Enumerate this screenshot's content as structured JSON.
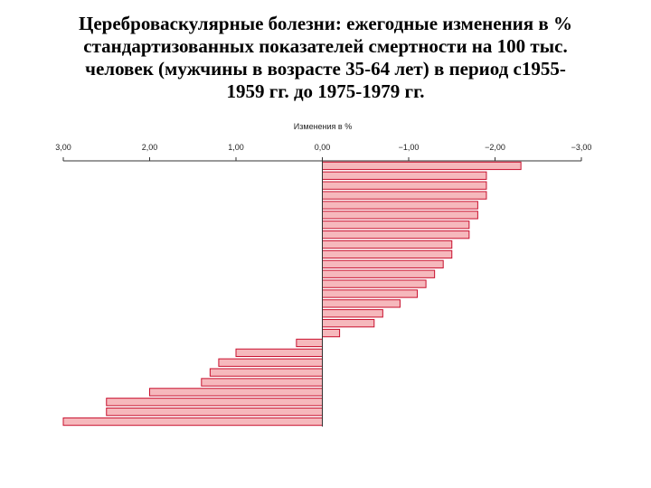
{
  "chart_data": {
    "type": "barh",
    "title": [
      "Цереброваскулярные болезни: ежегодные изменения в %",
      "стандартизованных показателей смертности на 100 тыс.",
      "человек (мужчины в возрасте 35-64 лет) в период с1955-",
      "1959 гг. до 1975-1979 гг."
    ],
    "xlabel": "Изменения в %",
    "categories": [
      null,
      null,
      null,
      null,
      null,
      null,
      null,
      null,
      null,
      null,
      null,
      null,
      null,
      null,
      null,
      null,
      null,
      null,
      null,
      null,
      null,
      null,
      null,
      null,
      null,
      null,
      null
    ],
    "values": [
      -2.3,
      -1.9,
      -1.9,
      -1.9,
      -1.8,
      -1.8,
      -1.7,
      -1.7,
      -1.5,
      -1.5,
      -1.4,
      -1.3,
      -1.2,
      -1.1,
      -0.9,
      -0.7,
      -0.6,
      -0.2,
      0.3,
      1.0,
      1.2,
      1.3,
      1.4,
      2.0,
      2.5,
      2.5,
      3.0
    ],
    "color": "#f6b8bc",
    "edgecolor": "#c8102e",
    "xlim": [
      3,
      -3
    ],
    "xticks": [
      {
        "value": 3,
        "label": "3,00"
      },
      {
        "value": 2,
        "label": "2,00"
      },
      {
        "value": 1,
        "label": "1,00"
      },
      {
        "value": 0,
        "label": "0,00"
      },
      {
        "value": -1,
        "label": "−1,00"
      },
      {
        "value": -2,
        "label": "−2,00"
      },
      {
        "value": -3,
        "label": "−3,00"
      }
    ]
  }
}
